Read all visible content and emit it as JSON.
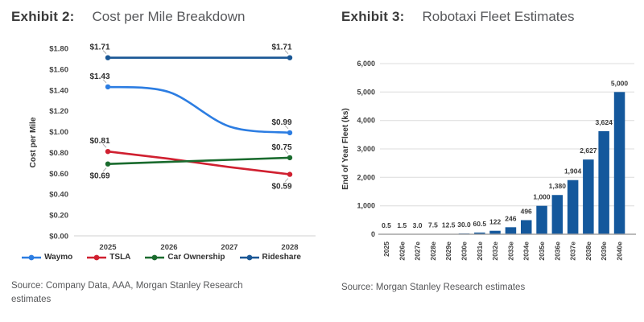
{
  "left_panel": {
    "exhibit_label": "Exhibit 2:",
    "title": "Cost per Mile Breakdown",
    "source": "Source: Company Data, AAA, Morgan Stanley Research estimates"
  },
  "right_panel": {
    "exhibit_label": "Exhibit 3:",
    "title": "Robotaxi Fleet Estimates",
    "source": "Source: Morgan Stanley Research estimates"
  },
  "chart_data": [
    {
      "type": "line",
      "title": "Cost per Mile Breakdown",
      "ylabel": "Cost per Mile",
      "xlabel": "",
      "x_categories": [
        "2025",
        "2026",
        "2027",
        "2028"
      ],
      "ylim": [
        0,
        1.8
      ],
      "ytick_step": 0.2,
      "yticks": [
        "$0.00",
        "$0.20",
        "$0.40",
        "$0.60",
        "$0.80",
        "$1.00",
        "$1.20",
        "$1.40",
        "$1.60",
        "$1.80"
      ],
      "grid": false,
      "legend_position": "bottom",
      "series": [
        {
          "name": "Waymo",
          "color": "#2c7de2",
          "smooth": true,
          "values": [
            1.43,
            1.38,
            1.05,
            0.99
          ],
          "point_labels": [
            {
              "index": 0,
              "text": "$1.43",
              "position": "above"
            },
            {
              "index": 3,
              "text": "$0.99",
              "position": "above"
            }
          ]
        },
        {
          "name": "TSLA",
          "color": "#d02030",
          "smooth": false,
          "values": [
            0.81,
            0.74,
            0.66,
            0.59
          ],
          "point_labels": [
            {
              "index": 0,
              "text": "$0.81",
              "position": "above"
            },
            {
              "index": 3,
              "text": "$0.59",
              "position": "below"
            }
          ]
        },
        {
          "name": "Car Ownership",
          "color": "#1a6b2e",
          "smooth": false,
          "values": [
            0.69,
            0.71,
            0.73,
            0.75
          ],
          "point_labels": [
            {
              "index": 0,
              "text": "$0.69",
              "position": "below"
            },
            {
              "index": 3,
              "text": "$0.75",
              "position": "above"
            }
          ]
        },
        {
          "name": "Rideshare",
          "color": "#1a5795",
          "smooth": false,
          "values": [
            1.71,
            1.71,
            1.71,
            1.71
          ],
          "point_labels": [
            {
              "index": 0,
              "text": "$1.71",
              "position": "above"
            },
            {
              "index": 3,
              "text": "$1.71",
              "position": "above"
            }
          ]
        }
      ]
    },
    {
      "type": "bar",
      "title": "Robotaxi Fleet Estimates",
      "ylabel": "End of Year Fleet (ks)",
      "xlabel": "",
      "categories": [
        "2025",
        "2026e",
        "2027e",
        "2028e",
        "2029e",
        "2030e",
        "2031e",
        "2032e",
        "2033e",
        "2034e",
        "2035e",
        "2036e",
        "2037e",
        "2038e",
        "2039e",
        "2040e"
      ],
      "values": [
        0.5,
        1.5,
        3.0,
        7.5,
        12.5,
        30.0,
        60.5,
        122,
        246,
        496,
        1000,
        1380,
        1904,
        2627,
        3624,
        5000
      ],
      "value_labels": [
        "0.5",
        "1.5",
        "3.0",
        "7.5",
        "12.5",
        "30.0",
        "60.5",
        "122",
        "246",
        "496",
        "1,000",
        "1,380",
        "1,904",
        "2,627",
        "3,624",
        "5,000"
      ],
      "ylim": [
        0,
        6000
      ],
      "ytick_step": 1000,
      "yticks": [
        "0",
        "1,000",
        "2,000",
        "3,000",
        "4,000",
        "5,000",
        "6,000"
      ],
      "grid": true,
      "bar_color": "#14589c"
    }
  ]
}
